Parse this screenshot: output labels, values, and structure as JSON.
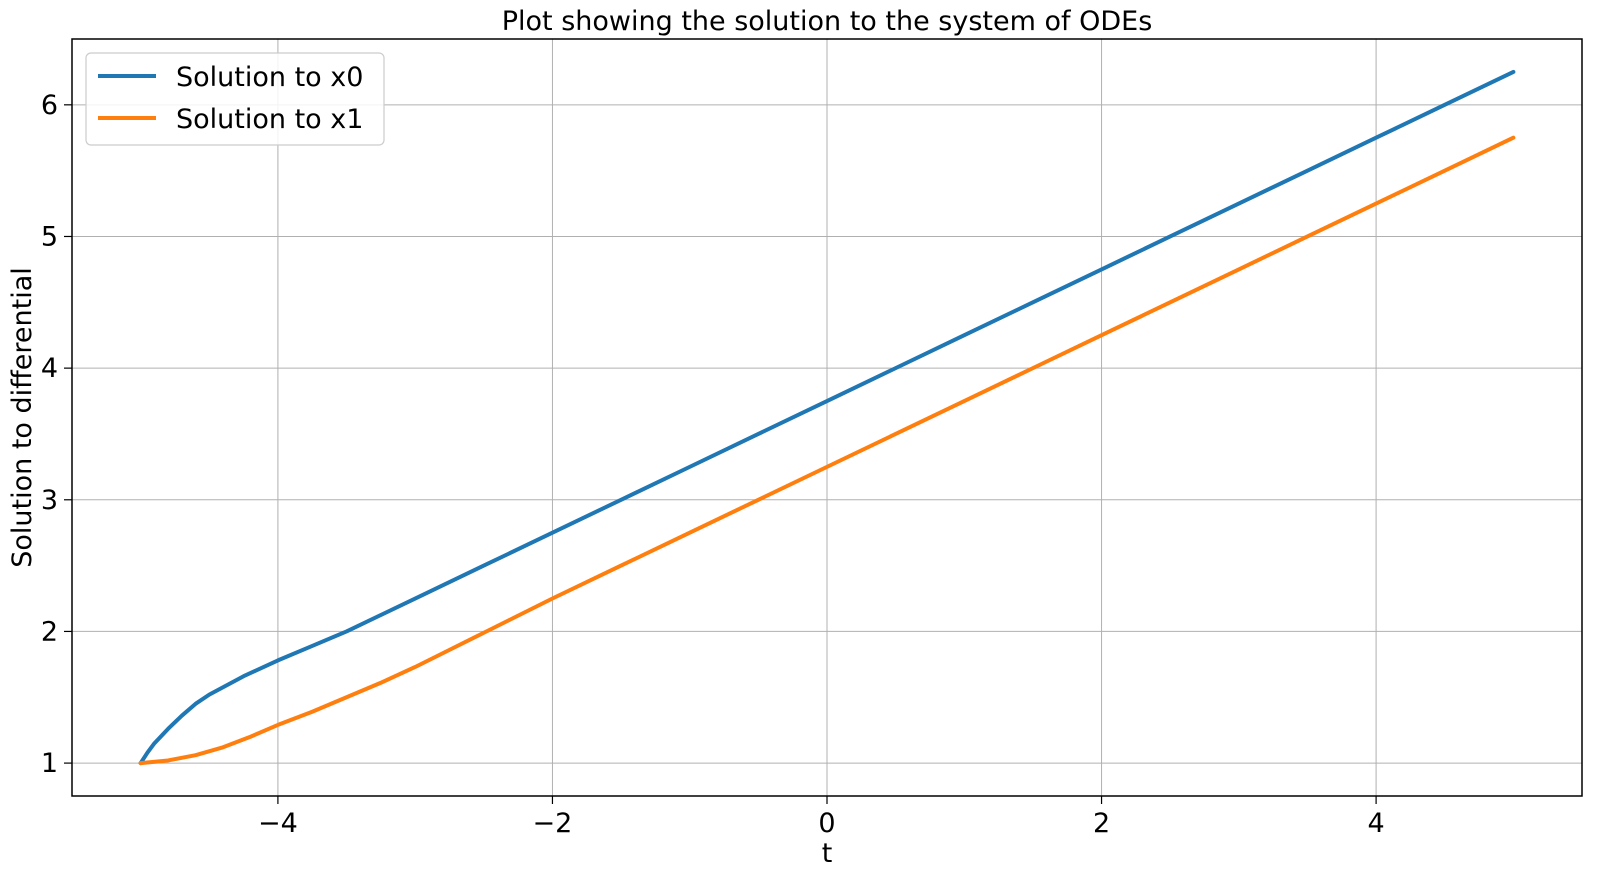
{
  "chart_data": {
    "type": "line",
    "title": "Plot showing the solution to the system of ODEs",
    "xlabel": "t",
    "ylabel": "Solution to differential",
    "xlim": [
      -5.5,
      5.5
    ],
    "ylim": [
      0.75,
      6.5
    ],
    "xticks": [
      -4,
      -2,
      0,
      2,
      4
    ],
    "xtick_labels": [
      "−4",
      "−2",
      "0",
      "2",
      "4"
    ],
    "yticks": [
      1,
      2,
      3,
      4,
      5,
      6
    ],
    "ytick_labels": [
      "1",
      "2",
      "3",
      "4",
      "5",
      "6"
    ],
    "grid": true,
    "legend_position": "upper-left",
    "series": [
      {
        "name": "Solution to x0",
        "color": "#1f77b4",
        "x": [
          -5.0,
          -4.95,
          -4.9,
          -4.8,
          -4.7,
          -4.6,
          -4.5,
          -4.25,
          -4.0,
          -3.75,
          -3.5,
          -3.0,
          -2.5,
          -2.0,
          -1.5,
          -1.0,
          -0.5,
          0.0,
          0.5,
          1.0,
          1.5,
          2.0,
          2.5,
          3.0,
          3.5,
          4.0,
          4.5,
          5.0
        ],
        "y": [
          1.0,
          1.08,
          1.15,
          1.26,
          1.36,
          1.45,
          1.52,
          1.66,
          1.78,
          1.89,
          2.0,
          2.25,
          2.5,
          2.75,
          3.0,
          3.25,
          3.5,
          3.75,
          4.0,
          4.25,
          4.5,
          4.75,
          5.0,
          5.25,
          5.5,
          5.75,
          6.0,
          6.25
        ]
      },
      {
        "name": "Solution to x1",
        "color": "#ff7f0e",
        "x": [
          -5.0,
          -4.8,
          -4.6,
          -4.4,
          -4.2,
          -4.0,
          -3.75,
          -3.5,
          -3.25,
          -3.0,
          -2.75,
          -2.5,
          -2.0,
          -1.5,
          -1.0,
          -0.5,
          0.0,
          0.5,
          1.0,
          1.5,
          2.0,
          2.5,
          3.0,
          3.5,
          4.0,
          4.5,
          5.0
        ],
        "y": [
          1.0,
          1.02,
          1.06,
          1.12,
          1.2,
          1.29,
          1.39,
          1.5,
          1.61,
          1.73,
          1.86,
          1.99,
          2.25,
          2.5,
          2.75,
          3.0,
          3.25,
          3.5,
          3.75,
          4.0,
          4.25,
          4.5,
          4.75,
          5.0,
          5.25,
          5.5,
          5.75
        ]
      }
    ]
  }
}
